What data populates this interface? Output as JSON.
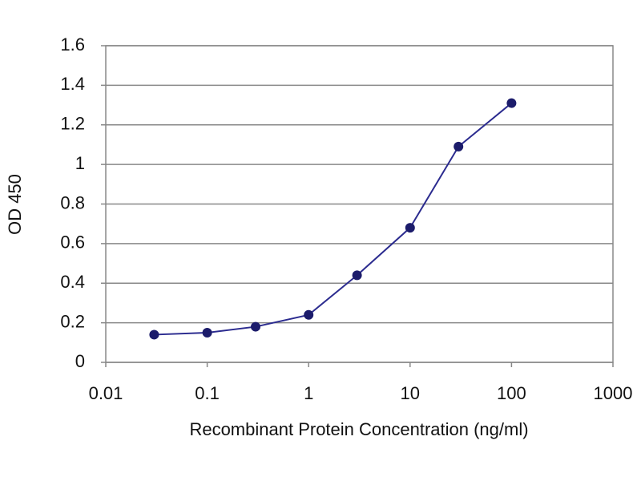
{
  "chart_data": {
    "type": "line",
    "x": [
      0.03,
      0.1,
      0.3,
      1,
      3,
      10,
      30,
      100
    ],
    "series": [
      {
        "color": "#2b2b8f",
        "values": [
          0.14,
          0.15,
          0.18,
          0.24,
          0.44,
          0.68,
          1.09,
          1.31
        ]
      }
    ],
    "xlabel": "Recombinant Protein Concentration (ng/ml)",
    "ylabel": "OD 450",
    "xlim": [
      0.01,
      1000
    ],
    "xticks": [
      0.01,
      0.1,
      1,
      10,
      100,
      1000
    ],
    "xscale": "log",
    "ylim": [
      0,
      1.6
    ],
    "yticks": [
      0,
      0.2,
      0.4,
      0.6,
      0.8,
      1,
      1.2,
      1.4,
      1.6
    ],
    "grid": true
  }
}
